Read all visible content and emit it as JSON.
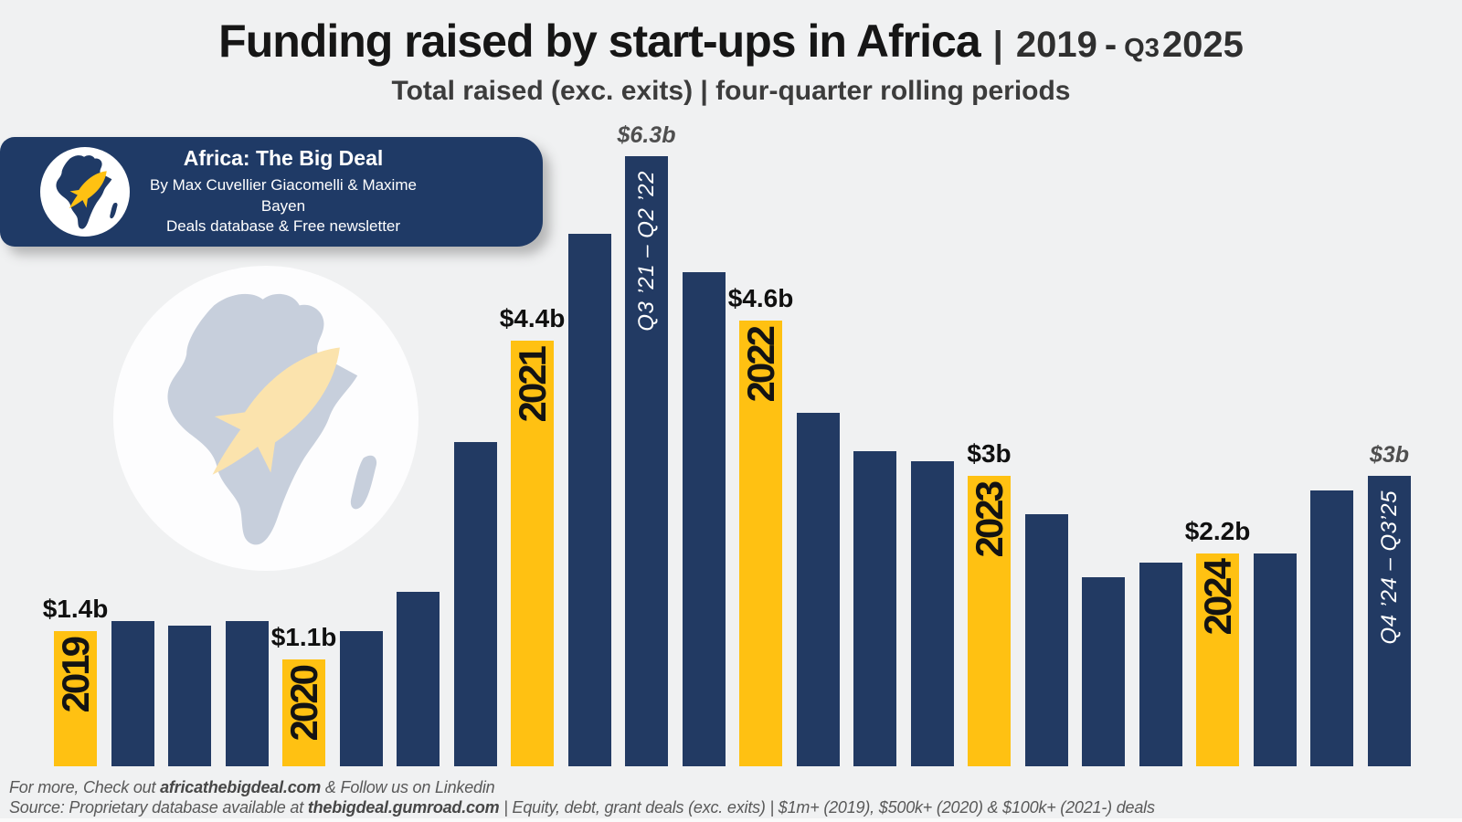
{
  "title": {
    "main": "Funding raised by start-ups in Africa",
    "separator": "|",
    "range_start": "2019",
    "dash": "-",
    "range_quarter": "Q3",
    "range_end": "2025"
  },
  "subtitle": "Total raised (exc. exits) | four-quarter rolling periods",
  "badge": {
    "title": "Africa: The Big Deal",
    "byline": "By Max Cuvellier Giacomelli & Maxime Bayen",
    "tagline": "Deals database & Free newsletter",
    "logo_icons": [
      "globe-circle-icon",
      "africa-map-icon",
      "rocket-icon"
    ]
  },
  "watermark": {
    "icons": [
      "globe-circle-icon",
      "africa-map-icon",
      "rocket-icon"
    ]
  },
  "chart_data": {
    "type": "bar",
    "title": "Funding raised by start-ups in Africa | 2019 - Q3 2025",
    "subtitle": "Total raised (exc. exits) | four-quarter rolling periods",
    "unit": "USD billions, four-quarter rolling totals",
    "ylim": [
      0,
      7
    ],
    "grid": false,
    "legend": "none",
    "colors": {
      "navy": "#223a63",
      "yellow": "#ffc112"
    },
    "bars": [
      {
        "value": 1.4,
        "color": "yellow",
        "year_label": "2019",
        "value_label": "$1.4b",
        "label_style": "bold"
      },
      {
        "value": 1.5,
        "color": "navy"
      },
      {
        "value": 1.45,
        "color": "navy"
      },
      {
        "value": 1.5,
        "color": "navy"
      },
      {
        "value": 1.1,
        "color": "yellow",
        "year_label": "2020",
        "value_label": "$1.1b",
        "label_style": "bold"
      },
      {
        "value": 1.4,
        "color": "navy"
      },
      {
        "value": 1.8,
        "color": "navy"
      },
      {
        "value": 3.35,
        "color": "navy"
      },
      {
        "value": 4.4,
        "color": "yellow",
        "year_label": "2021",
        "value_label": "$4.4b",
        "label_style": "bold"
      },
      {
        "value": 5.5,
        "color": "navy"
      },
      {
        "value": 6.3,
        "color": "navy",
        "value_label": "$6.3b",
        "label_style": "italic",
        "period_label": "Q3 ’21 – Q2 ’22"
      },
      {
        "value": 5.1,
        "color": "navy"
      },
      {
        "value": 4.6,
        "color": "yellow",
        "year_label": "2022",
        "value_label": "$4.6b",
        "label_style": "bold"
      },
      {
        "value": 3.65,
        "color": "navy"
      },
      {
        "value": 3.25,
        "color": "navy"
      },
      {
        "value": 3.15,
        "color": "navy"
      },
      {
        "value": 3.0,
        "color": "yellow",
        "year_label": "2023",
        "value_label": "$3b",
        "label_style": "bold"
      },
      {
        "value": 2.6,
        "color": "navy"
      },
      {
        "value": 1.95,
        "color": "navy"
      },
      {
        "value": 2.1,
        "color": "navy"
      },
      {
        "value": 2.2,
        "color": "yellow",
        "year_label": "2024",
        "value_label": "$2.2b",
        "label_style": "bold"
      },
      {
        "value": 2.2,
        "color": "navy"
      },
      {
        "value": 2.85,
        "color": "navy"
      },
      {
        "value": 3.0,
        "color": "navy",
        "value_label": "$3b",
        "label_style": "italic",
        "period_label": "Q4 ’24 – Q3’25"
      }
    ]
  },
  "footer": {
    "lines": [
      [
        {
          "text": "For more, Check out ",
          "bold": false
        },
        {
          "text": "africathebigdeal.com",
          "bold": true
        },
        {
          "text": " & Follow us on Linkedin",
          "bold": false
        }
      ],
      [
        {
          "text": "Source: Proprietary database available at ",
          "bold": false
        },
        {
          "text": "thebigdeal.gumroad.com",
          "bold": true
        },
        {
          "text": " | Equity, debt, grant deals (exc. exits) | $1m+ (2019), $500k+ (2020) & $100k+ (2021-) deals",
          "bold": false
        }
      ]
    ]
  }
}
